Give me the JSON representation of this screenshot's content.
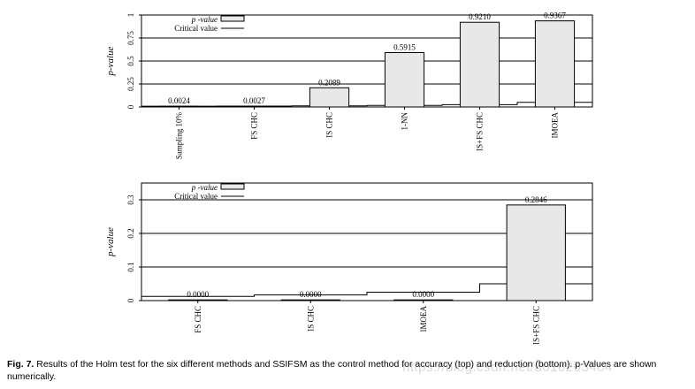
{
  "chart_data": [
    {
      "type": "bar",
      "ylabel": "p-value",
      "ylim": [
        0,
        1
      ],
      "yticks": [
        0,
        0.25,
        0.5,
        0.75,
        1
      ],
      "ytick_labels": [
        "0",
        "0.25",
        "0.5",
        "0.75",
        "1"
      ],
      "grid": true,
      "legend_placement": "top-left",
      "legend": {
        "pvalue": "p -value",
        "critical": "Critical value"
      },
      "categories": [
        "Sampling 10%",
        "FS CHC",
        "IS CHC",
        "1-NN",
        "IS+FS CHC",
        "IMOEA"
      ],
      "values": [
        0.0024,
        0.0027,
        0.2089,
        0.5915,
        0.921,
        0.9367
      ],
      "value_labels": [
        "0.0024",
        "0.0027",
        "0.2089",
        "0.5915",
        "0.9210",
        "0.9367"
      ],
      "critical_values": [
        0.0083,
        0.01,
        0.0125,
        0.0167,
        0.025,
        0.05
      ]
    },
    {
      "type": "bar",
      "ylabel": "p-value",
      "ylim": [
        0,
        0.35
      ],
      "yticks": [
        0,
        0.1,
        0.2,
        0.3
      ],
      "ytick_labels": [
        "0",
        "0.1",
        "0.2",
        "0.3"
      ],
      "grid": true,
      "legend_placement": "top-left",
      "legend": {
        "pvalue": "p -value",
        "critical": "Critical value"
      },
      "categories": [
        "FS CHC",
        "IS CHC",
        "IMOEA",
        "IS+FS CHC"
      ],
      "values": [
        0.0,
        0.0,
        0.0,
        0.2846
      ],
      "value_labels": [
        "0.0000",
        "0.0000",
        "0.0000",
        "0.2846"
      ],
      "critical_values": [
        0.0125,
        0.0167,
        0.025,
        0.05
      ]
    }
  ],
  "colors": {
    "bar_fill": "#e8e8e8",
    "bar_stroke": "#000000",
    "axis": "#000000"
  },
  "caption": {
    "label": "Fig. 7.",
    "text": " Results of the Holm test for the six different methods and SSIFSM as the control method for accuracy (top) and reduction (bottom). p-Values are shown numerically."
  },
  "watermark": "https://blog.csdn.net/u010203404"
}
